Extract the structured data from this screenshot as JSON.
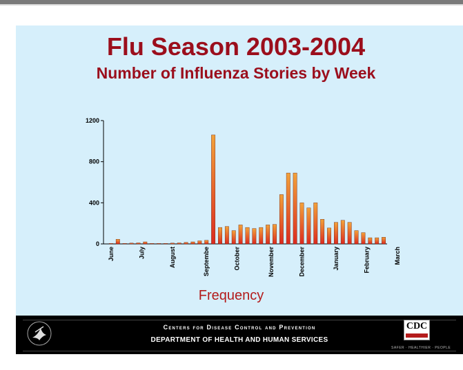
{
  "slide": {
    "title": "Flu Season 2003-2004",
    "subtitle": "Number of Influenza Stories by Week",
    "xlabel": "Frequency"
  },
  "footer": {
    "line1": "Centers for Disease Control and Prevention",
    "line2": "DEPARTMENT OF HEALTH AND HUMAN SERVICES",
    "cdc_logo_text": "CDC",
    "tagline": "SAFER · HEALTHIER · PEOPLE"
  },
  "colors": {
    "background": "#d6effb",
    "title": "#9b0e1c",
    "bar_top": "#f2a23a",
    "bar_bottom": "#dc2a1f",
    "axis_label": "#b31b1b"
  },
  "chart_data": {
    "type": "bar",
    "title": "",
    "xlabel": "Frequency",
    "ylabel": "",
    "ylim": [
      0,
      1200
    ],
    "yticks": [
      0,
      400,
      800,
      1200
    ],
    "month_labels": [
      {
        "label": "June",
        "week": 0
      },
      {
        "label": "July",
        "week": 4.5
      },
      {
        "label": "August",
        "week": 9
      },
      {
        "label": "Septembe",
        "week": 14
      },
      {
        "label": "October",
        "week": 18.5
      },
      {
        "label": "November",
        "week": 23.5
      },
      {
        "label": "December",
        "week": 28
      },
      {
        "label": "January",
        "week": 33
      },
      {
        "label": "February",
        "week": 37.5
      },
      {
        "label": "March",
        "week": 42
      }
    ],
    "values": [
      5,
      45,
      5,
      8,
      10,
      20,
      5,
      5,
      5,
      8,
      10,
      15,
      20,
      30,
      35,
      1060,
      160,
      170,
      130,
      185,
      160,
      150,
      160,
      185,
      190,
      480,
      690,
      690,
      400,
      350,
      400,
      240,
      155,
      210,
      230,
      210,
      130,
      110,
      60,
      60,
      65
    ]
  }
}
